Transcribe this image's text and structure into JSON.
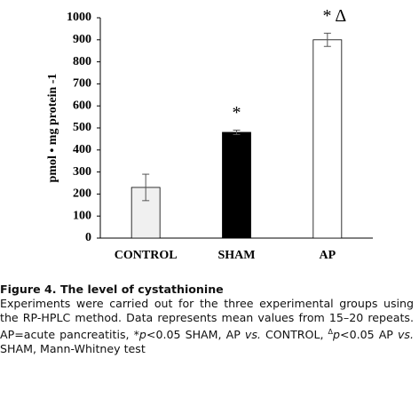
{
  "chart_data": {
    "type": "bar",
    "y_label": "pmol • mg protein -1",
    "categories": [
      "CONTROL",
      "SHAM",
      "AP"
    ],
    "values": [
      230,
      480,
      900
    ],
    "errors": [
      60,
      10,
      30
    ],
    "colors": [
      "#f0f0f0",
      "#000000",
      "#ffffff"
    ],
    "ylim": [
      0,
      1000
    ],
    "yticks": [
      0,
      100,
      200,
      300,
      400,
      500,
      600,
      700,
      800,
      900,
      1000
    ],
    "annotations": [
      {
        "text": "*",
        "category": "SHAM"
      },
      {
        "text": "*  Δ",
        "category": "AP"
      }
    ]
  },
  "caption": {
    "title": "Figure 4. The level of cystathionine",
    "runs": [
      "Experiments were carried out for the three experimental groups using the RP-HPLC method. Data represents mean values from 15–20 repeats. AP=acute pancreatitis, *",
      "p",
      "<0.05 SHAM, AP ",
      "vs.",
      " CONTROL, ",
      "Δ",
      "p",
      "<0.05 AP ",
      "vs.",
      " SHAM, Mann-Whitney test"
    ]
  }
}
